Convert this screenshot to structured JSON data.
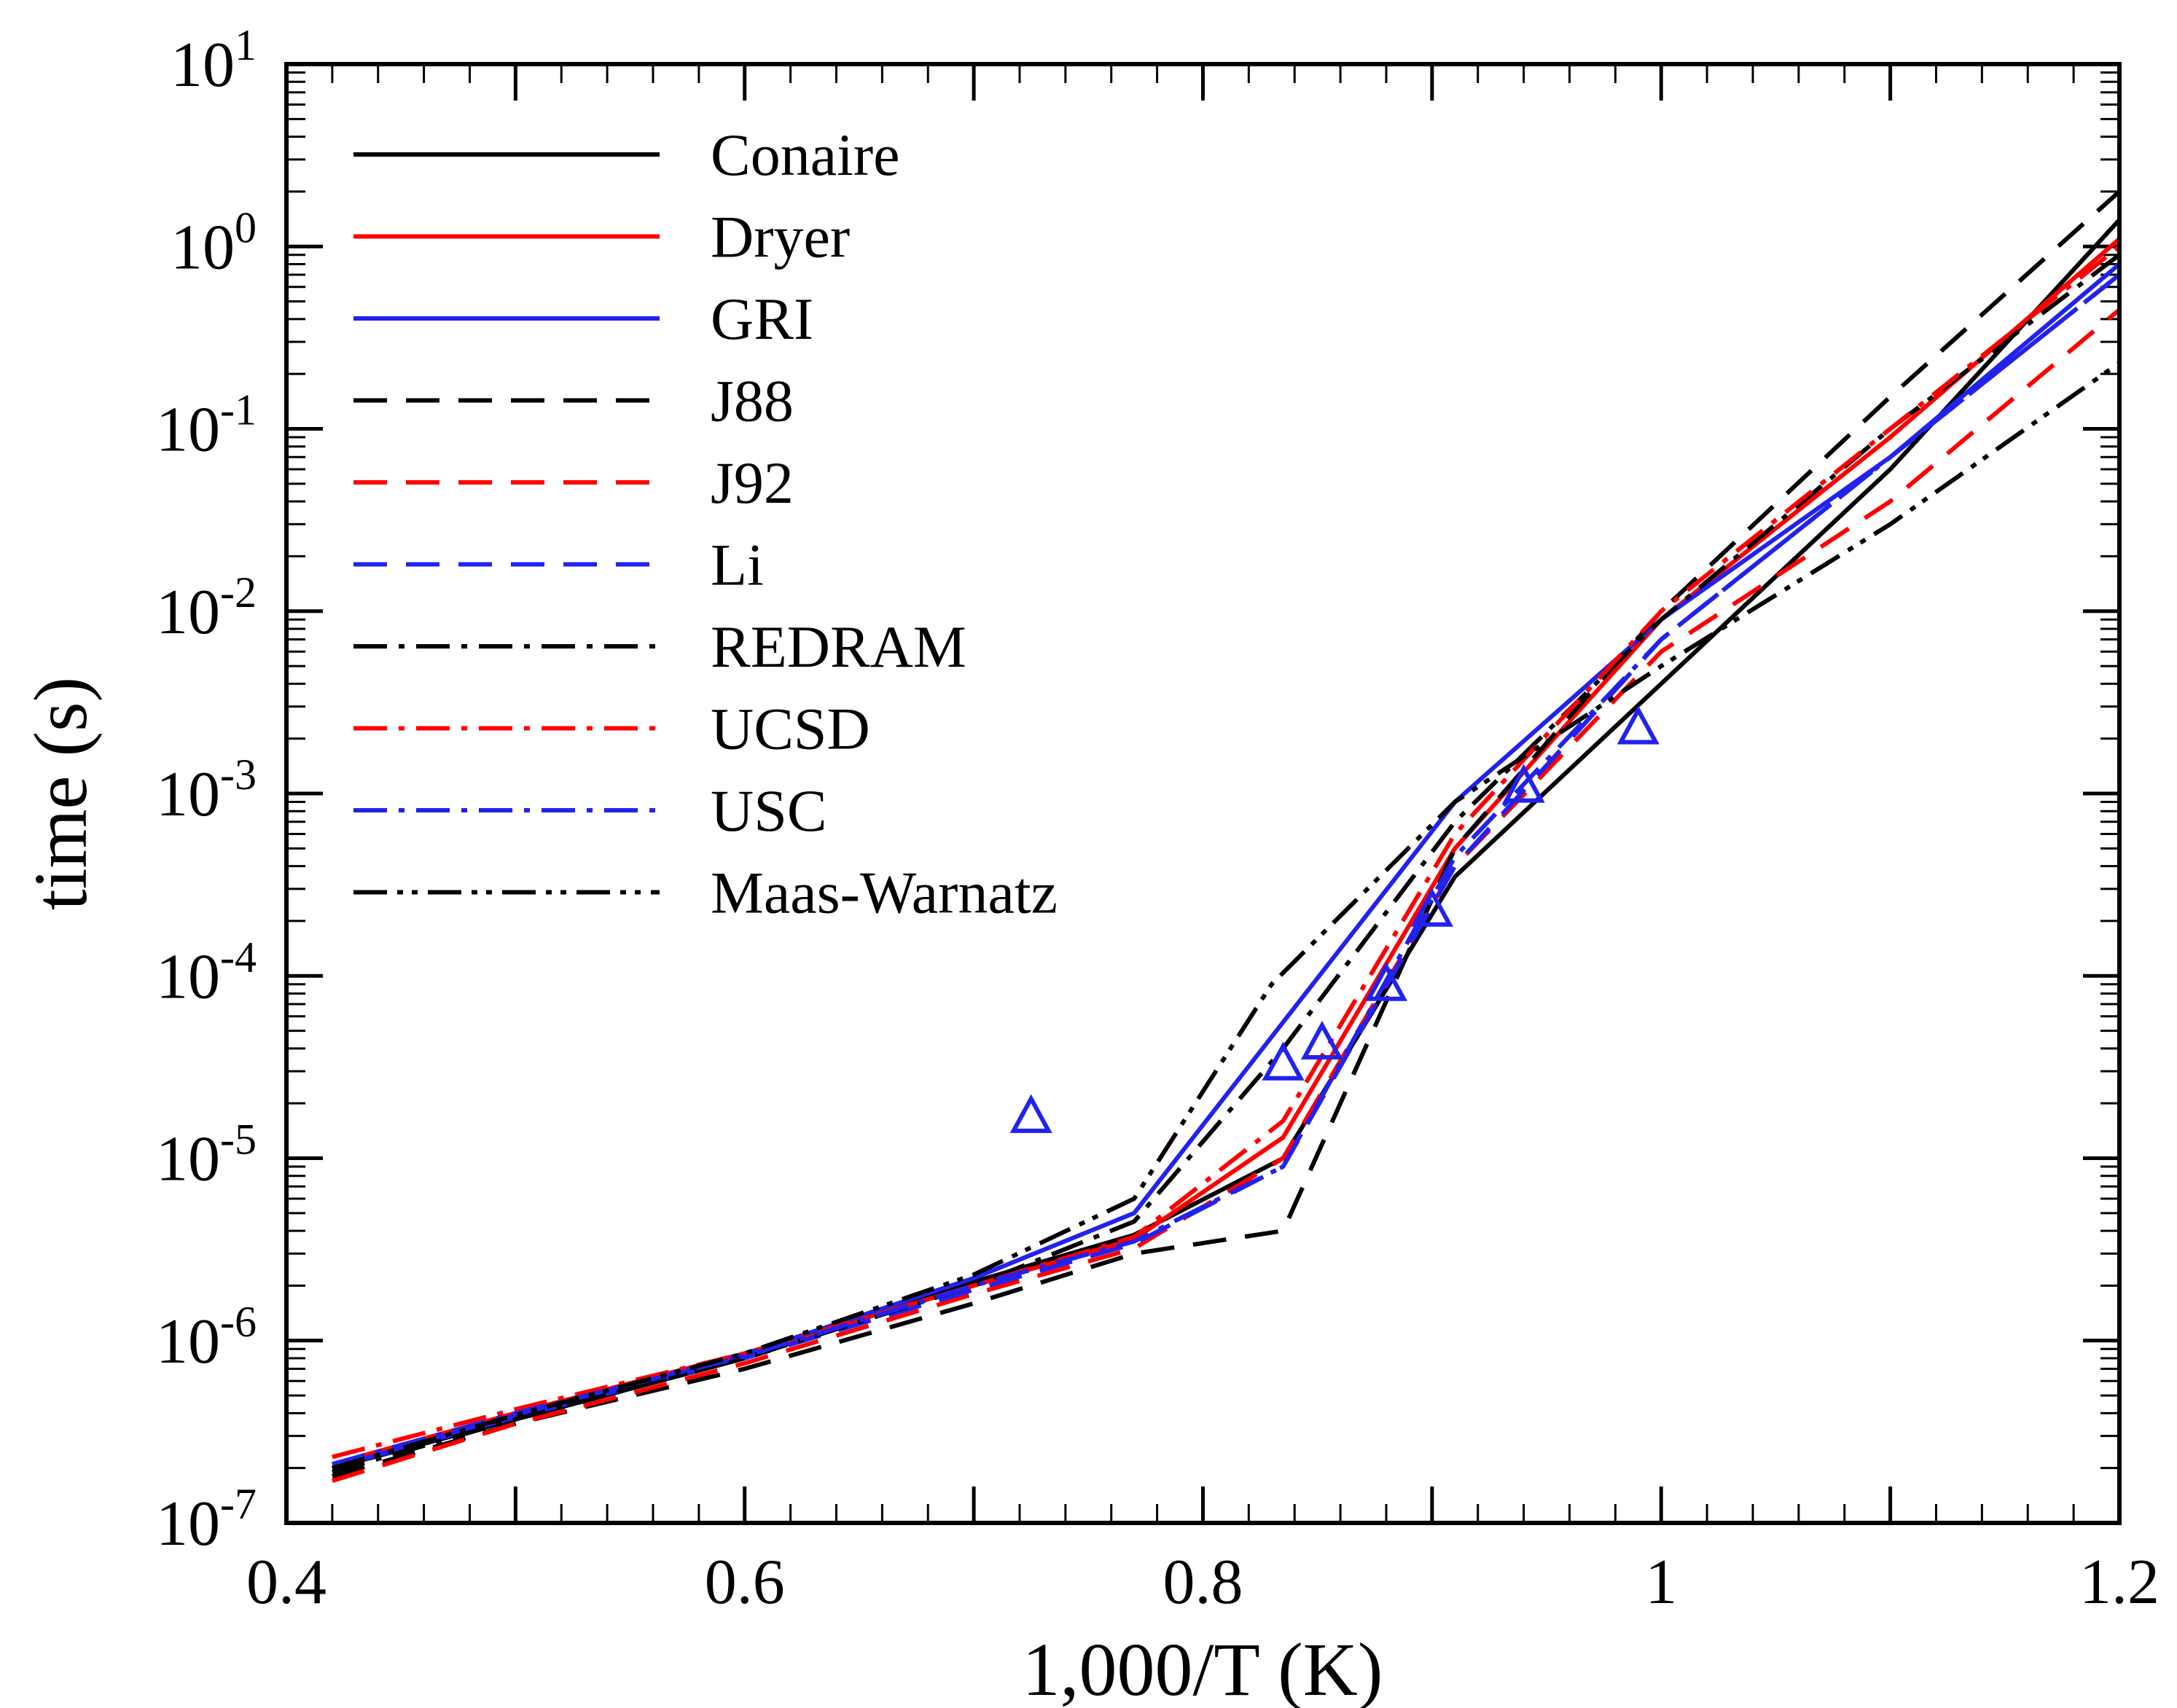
{
  "chart_data": {
    "type": "line",
    "xlabel": "1,000/T (K)",
    "ylabel": "time (s)",
    "xlim": [
      0.4,
      1.2
    ],
    "ylim_log10": [
      -7,
      1
    ],
    "x_ticks": [
      {
        "value": 0.4,
        "label": "0.4"
      },
      {
        "value": 0.6,
        "label": "0.6"
      },
      {
        "value": 0.8,
        "label": "0.8"
      },
      {
        "value": 1.0,
        "label": "1"
      },
      {
        "value": 1.2,
        "label": "1.2"
      }
    ],
    "y_ticks": [
      {
        "exp": 1,
        "base": "10",
        "sup": "1"
      },
      {
        "exp": 0,
        "base": "10",
        "sup": "0"
      },
      {
        "exp": -1,
        "base": "10",
        "sup": "-1"
      },
      {
        "exp": -2,
        "base": "10",
        "sup": "-2"
      },
      {
        "exp": -3,
        "base": "10",
        "sup": "-3"
      },
      {
        "exp": -4,
        "base": "10",
        "sup": "-4"
      },
      {
        "exp": -5,
        "base": "10",
        "sup": "-5"
      },
      {
        "exp": -6,
        "base": "10",
        "sup": "-6"
      },
      {
        "exp": -7,
        "base": "10",
        "sup": "-7"
      }
    ],
    "legend_position": "top-left",
    "series": [
      {
        "name": "Conaire",
        "color": "#000000",
        "dash": "solid",
        "x": [
          0.42,
          0.5,
          0.6,
          0.7,
          0.77,
          0.835,
          0.91,
          1.0,
          1.1,
          1.2
        ],
        "y": [
          2e-07,
          3.7e-07,
          8e-07,
          2.1e-06,
          3.8e-06,
          1e-05,
          0.00035,
          0.004,
          0.06,
          1.4
        ]
      },
      {
        "name": "Dryer",
        "color": "#ff0000",
        "dash": "solid",
        "x": [
          0.42,
          0.5,
          0.6,
          0.7,
          0.77,
          0.835,
          0.91,
          1.0,
          1.1,
          1.2
        ],
        "y": [
          2.1e-07,
          4e-07,
          8.5e-07,
          2e-06,
          3.6e-06,
          1.3e-05,
          0.0005,
          0.009,
          0.09,
          1.1
        ]
      },
      {
        "name": "GRI",
        "color": "#2222ee",
        "dash": "solid",
        "x": [
          0.42,
          0.5,
          0.6,
          0.7,
          0.77,
          0.91,
          1.0,
          1.1,
          1.2
        ],
        "y": [
          2e-07,
          3.9e-07,
          8.4e-07,
          2.2e-06,
          5e-06,
          0.0009,
          0.009,
          0.07,
          0.8
        ]
      },
      {
        "name": "J88",
        "color": "#000000",
        "dash": "dash",
        "x": [
          0.42,
          0.5,
          0.6,
          0.7,
          0.77,
          0.835,
          0.91,
          1.0,
          1.1,
          1.2
        ],
        "y": [
          1.8e-07,
          3.5e-07,
          7e-07,
          1.6e-06,
          3e-06,
          4e-06,
          0.0005,
          0.01,
          0.15,
          2.0
        ]
      },
      {
        "name": "J92",
        "color": "#ff0000",
        "dash": "dash",
        "x": [
          0.42,
          0.5,
          0.6,
          0.7,
          0.77,
          0.835,
          0.91,
          1.0,
          1.1,
          1.2
        ],
        "y": [
          1.7e-07,
          3.5e-07,
          7.5e-07,
          1.8e-06,
          3.2e-06,
          1e-05,
          0.0004,
          0.006,
          0.04,
          0.45
        ]
      },
      {
        "name": "Li",
        "color": "#2222ee",
        "dash": "dash",
        "x": [
          0.42,
          0.5,
          0.6,
          0.7,
          0.77,
          0.835,
          0.91,
          1.0,
          1.1,
          1.2
        ],
        "y": [
          2e-07,
          3.8e-07,
          8e-07,
          1.9e-06,
          3.4e-06,
          9e-06,
          0.0004,
          0.007,
          0.07,
          0.7
        ]
      },
      {
        "name": "REDRAM",
        "color": "#000000",
        "dash": "dashdot",
        "x": [
          0.42,
          0.5,
          0.6,
          0.7,
          0.77,
          0.835,
          0.91,
          1.0,
          1.1,
          1.2
        ],
        "y": [
          1.9e-07,
          3.7e-07,
          8e-07,
          2e-06,
          4.5e-06,
          4e-05,
          0.0007,
          0.009,
          0.1,
          0.9
        ]
      },
      {
        "name": "UCSD",
        "color": "#ff0000",
        "dash": "dashdot",
        "x": [
          0.42,
          0.5,
          0.6,
          0.7,
          0.77,
          0.835,
          0.91,
          1.0,
          1.1,
          1.2
        ],
        "y": [
          2.3e-07,
          4.2e-07,
          8.5e-07,
          2e-06,
          3.7e-06,
          1.6e-05,
          0.0006,
          0.01,
          0.1,
          1.0
        ]
      },
      {
        "name": "USC",
        "color": "#2222ee",
        "dash": "dashdot",
        "x": [
          0.42,
          0.5,
          0.6,
          0.7,
          0.77,
          0.835,
          0.91,
          1.0,
          1.1,
          1.2
        ],
        "y": [
          2.1e-07,
          4e-07,
          8.2e-07,
          2e-06,
          3.5e-06,
          9e-06,
          0.00045,
          0.007,
          0.07,
          0.7
        ]
      },
      {
        "name": "Maas-Warnatz",
        "color": "#000000",
        "dash": "dashdotdot",
        "x": [
          0.42,
          0.5,
          0.6,
          0.7,
          0.77,
          0.83,
          0.91,
          1.0,
          1.1,
          1.2
        ],
        "y": [
          2e-07,
          3.9e-07,
          8.5e-07,
          2.3e-06,
          6e-06,
          9e-05,
          0.0009,
          0.005,
          0.03,
          0.23
        ]
      }
    ],
    "markers": {
      "shape": "triangle-open",
      "color": "#2222ee",
      "points": [
        {
          "x": 0.725,
          "y": 1.7e-05
        },
        {
          "x": 0.835,
          "y": 3.3e-05
        },
        {
          "x": 0.852,
          "y": 4.3e-05
        },
        {
          "x": 0.88,
          "y": 9e-05
        },
        {
          "x": 0.9,
          "y": 0.00023
        },
        {
          "x": 0.94,
          "y": 0.0011
        },
        {
          "x": 0.99,
          "y": 0.0023
        }
      ]
    }
  }
}
